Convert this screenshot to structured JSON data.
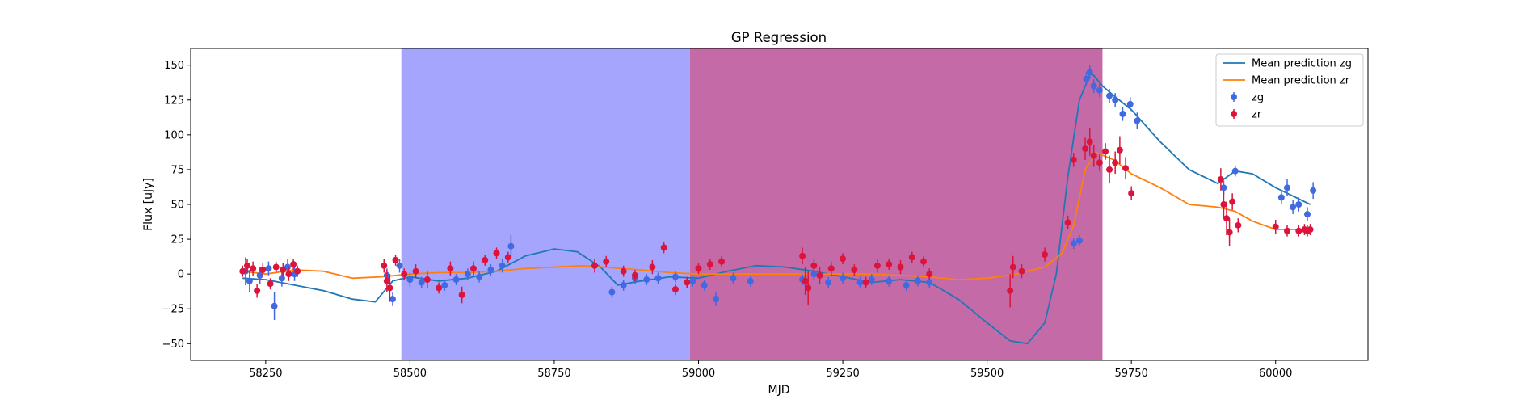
{
  "chart_data": {
    "type": "scatter",
    "title": "GP Regression",
    "xlabel": "MJD",
    "ylabel": "Flux [uJy]",
    "xlim": [
      58120,
      60160
    ],
    "ylim": [
      -62,
      162
    ],
    "xticks": [
      58250,
      58500,
      58750,
      59000,
      59250,
      59500,
      59750,
      60000
    ],
    "yticks": [
      -50,
      -25,
      0,
      25,
      50,
      75,
      100,
      125,
      150
    ],
    "grid": false,
    "legend_position": "top-right",
    "shaded_regions": [
      {
        "x0": 58485,
        "x1": 58985,
        "color": "#a5a5fe"
      },
      {
        "x0": 58985,
        "x1": 59700,
        "color": "#c46aa6"
      }
    ],
    "series": [
      {
        "name": "Mean prediction zg",
        "kind": "line",
        "color": "#1f77b4",
        "x": [
          58210,
          58250,
          58300,
          58350,
          58400,
          58440,
          58470,
          58500,
          58550,
          58600,
          58650,
          58700,
          58750,
          58790,
          58830,
          58860,
          58900,
          58950,
          59000,
          59050,
          59100,
          59150,
          59200,
          59250,
          59300,
          59350,
          59400,
          59450,
          59500,
          59540,
          59570,
          59600,
          59620,
          59640,
          59660,
          59680,
          59700,
          59720,
          59750,
          59800,
          59850,
          59900,
          59930,
          59960,
          60000,
          60050,
          60060
        ],
        "y": [
          -3,
          -4,
          -8,
          -12,
          -18,
          -20,
          -5,
          -2,
          -5,
          -3,
          2,
          13,
          18,
          16,
          5,
          -8,
          -5,
          -2,
          -3,
          2,
          6,
          5,
          2,
          -2,
          -6,
          -4,
          -6,
          -18,
          -35,
          -48,
          -50,
          -35,
          0,
          70,
          125,
          145,
          135,
          128,
          118,
          95,
          75,
          65,
          74,
          72,
          62,
          52,
          50
        ]
      },
      {
        "name": "Mean prediction zr",
        "kind": "line",
        "color": "#ff7f0e",
        "x": [
          58210,
          58250,
          58300,
          58350,
          58400,
          58450,
          58500,
          58550,
          58600,
          58650,
          58700,
          58800,
          58900,
          58950,
          59000,
          59100,
          59200,
          59300,
          59350,
          59400,
          59450,
          59500,
          59550,
          59600,
          59630,
          59650,
          59670,
          59690,
          59720,
          59750,
          59800,
          59850,
          59900,
          59930,
          59960,
          60000,
          60060
        ],
        "y": [
          2,
          0,
          3,
          2,
          -3,
          -2,
          0,
          1,
          1,
          2,
          4,
          6,
          3,
          1,
          0,
          0,
          0,
          0,
          -1,
          -2,
          -4,
          -3,
          0,
          5,
          15,
          35,
          75,
          87,
          82,
          72,
          62,
          50,
          48,
          45,
          38,
          32,
          32
        ]
      },
      {
        "name": "zg",
        "kind": "errorbar",
        "color": "#4169e1",
        "x": [
          58215,
          58222,
          58240,
          58255,
          58265,
          58278,
          58288,
          58300,
          58460,
          58470,
          58482,
          58500,
          58520,
          58560,
          58580,
          58600,
          58620,
          58640,
          58660,
          58675,
          58850,
          58870,
          58890,
          58910,
          58930,
          58960,
          58990,
          59010,
          59030,
          59060,
          59090,
          59180,
          59200,
          59225,
          59250,
          59280,
          59300,
          59330,
          59360,
          59380,
          59400,
          59650,
          59660,
          59672,
          59678,
          59685,
          59695,
          59712,
          59722,
          59735,
          59748,
          59760,
          59910,
          59930,
          60010,
          60020,
          60030,
          60040,
          60055,
          60065
        ],
        "y": [
          2,
          -5,
          -1,
          4,
          -23,
          -3,
          5,
          0,
          -1,
          -18,
          6,
          -4,
          -6,
          -8,
          -4,
          0,
          -2,
          3,
          6,
          20,
          -13,
          -8,
          -3,
          -4,
          -3,
          -2,
          -5,
          -8,
          -18,
          -3,
          -5,
          -4,
          0,
          -6,
          -3,
          -6,
          -4,
          -5,
          -8,
          -5,
          -6,
          22,
          24,
          140,
          145,
          135,
          132,
          128,
          125,
          115,
          122,
          110,
          62,
          74,
          55,
          62,
          48,
          50,
          43,
          60
        ],
        "err": [
          10,
          8,
          6,
          5,
          10,
          6,
          6,
          5,
          5,
          5,
          5,
          5,
          4,
          4,
          4,
          4,
          4,
          4,
          5,
          8,
          4,
          4,
          4,
          4,
          4,
          4,
          4,
          4,
          5,
          4,
          4,
          4,
          4,
          4,
          4,
          4,
          4,
          4,
          4,
          4,
          4,
          4,
          4,
          5,
          5,
          5,
          5,
          5,
          5,
          5,
          5,
          6,
          5,
          4,
          5,
          6,
          5,
          5,
          5,
          6
        ]
      },
      {
        "name": "zr",
        "kind": "errorbar",
        "color": "#dc143c",
        "x": [
          58210,
          58218,
          58228,
          58235,
          58245,
          58258,
          58268,
          58280,
          58290,
          58298,
          58305,
          58455,
          58460,
          58465,
          58475,
          58490,
          58510,
          58530,
          58550,
          58570,
          58590,
          58610,
          58630,
          58650,
          58670,
          58820,
          58840,
          58870,
          58890,
          58920,
          58940,
          58960,
          58980,
          59000,
          59020,
          59040,
          59180,
          59185,
          59190,
          59200,
          59210,
          59230,
          59250,
          59270,
          59290,
          59310,
          59330,
          59350,
          59370,
          59390,
          59400,
          59540,
          59545,
          59560,
          59600,
          59640,
          59650,
          59670,
          59678,
          59685,
          59695,
          59705,
          59712,
          59722,
          59730,
          59740,
          59750,
          59905,
          59910,
          59915,
          59920,
          59925,
          59935,
          60000,
          60020,
          60040,
          60050,
          60055,
          60060
        ],
        "y": [
          2,
          6,
          4,
          -12,
          3,
          -7,
          5,
          3,
          0,
          7,
          2,
          6,
          -5,
          -10,
          10,
          0,
          2,
          -4,
          -10,
          4,
          -15,
          4,
          10,
          15,
          12,
          6,
          9,
          2,
          -1,
          5,
          19,
          -11,
          -6,
          4,
          7,
          9,
          13,
          -5,
          -10,
          6,
          -1,
          4,
          11,
          3,
          -6,
          6,
          7,
          5,
          12,
          9,
          0,
          -12,
          5,
          2,
          14,
          37,
          82,
          90,
          95,
          85,
          80,
          88,
          75,
          80,
          89,
          76,
          58,
          68,
          50,
          40,
          30,
          52,
          35,
          34,
          31,
          31,
          32,
          31,
          32
        ],
        "err": [
          4,
          5,
          5,
          5,
          5,
          4,
          4,
          5,
          5,
          4,
          4,
          5,
          8,
          10,
          4,
          4,
          5,
          6,
          4,
          5,
          6,
          5,
          4,
          4,
          4,
          5,
          4,
          4,
          4,
          5,
          4,
          4,
          4,
          4,
          4,
          4,
          6,
          10,
          12,
          5,
          6,
          5,
          4,
          4,
          4,
          5,
          4,
          5,
          4,
          4,
          4,
          12,
          8,
          5,
          5,
          5,
          5,
          8,
          10,
          8,
          6,
          6,
          10,
          8,
          10,
          8,
          5,
          8,
          10,
          12,
          10,
          6,
          5,
          5,
          4,
          4,
          4,
          4,
          4
        ]
      }
    ]
  }
}
